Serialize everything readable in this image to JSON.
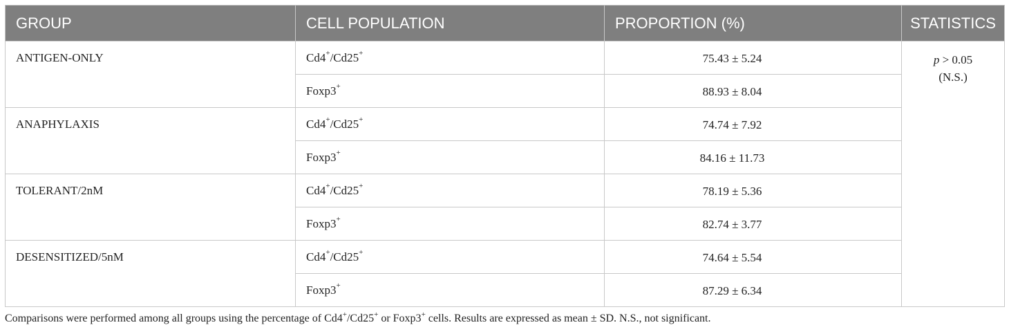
{
  "header": {
    "group": "GROUP",
    "cell_population": "CELL POPULATION",
    "proportion": "PROPORTION (%)",
    "statistics": "STATISTICS"
  },
  "rows": [
    {
      "group": "ANTIGEN-ONLY",
      "entries": [
        {
          "pop_main": "Cd4",
          "pop_mid": "/Cd25",
          "proportion": "75.43 ± 5.24"
        },
        {
          "pop_main": "Foxp3",
          "proportion": "88.93 ± 8.04"
        }
      ]
    },
    {
      "group": "ANAPHYLAXIS",
      "entries": [
        {
          "pop_main": "Cd4",
          "pop_mid": "/Cd25",
          "proportion": "74.74 ± 7.92"
        },
        {
          "pop_main": "Foxp3",
          "proportion": "84.16 ± 11.73"
        }
      ]
    },
    {
      "group": "TOLERANT/2nM",
      "entries": [
        {
          "pop_main": "Cd4",
          "pop_mid": "/Cd25",
          "proportion": "78.19 ± 5.36"
        },
        {
          "pop_main": "Foxp3",
          "proportion": "82.74 ± 3.77"
        }
      ]
    },
    {
      "group": "DESENSITIZED/5nM",
      "entries": [
        {
          "pop_main": "Cd4",
          "pop_mid": "/Cd25",
          "proportion": "74.64 ± 5.54"
        },
        {
          "pop_main": "Foxp3",
          "proportion": "87.29 ± 6.34"
        }
      ]
    }
  ],
  "sup_plus": "+",
  "statistics": {
    "p_label": "p",
    "p_value": " > 0.05",
    "note": "(N.S.)"
  },
  "footnote": {
    "part1": "Comparisons were performed among all groups using the percentage of Cd4",
    "part2": "/Cd25",
    "part3": " or Foxp3",
    "part4": " cells. Results are expressed as mean ± SD. N.S., not significant."
  }
}
